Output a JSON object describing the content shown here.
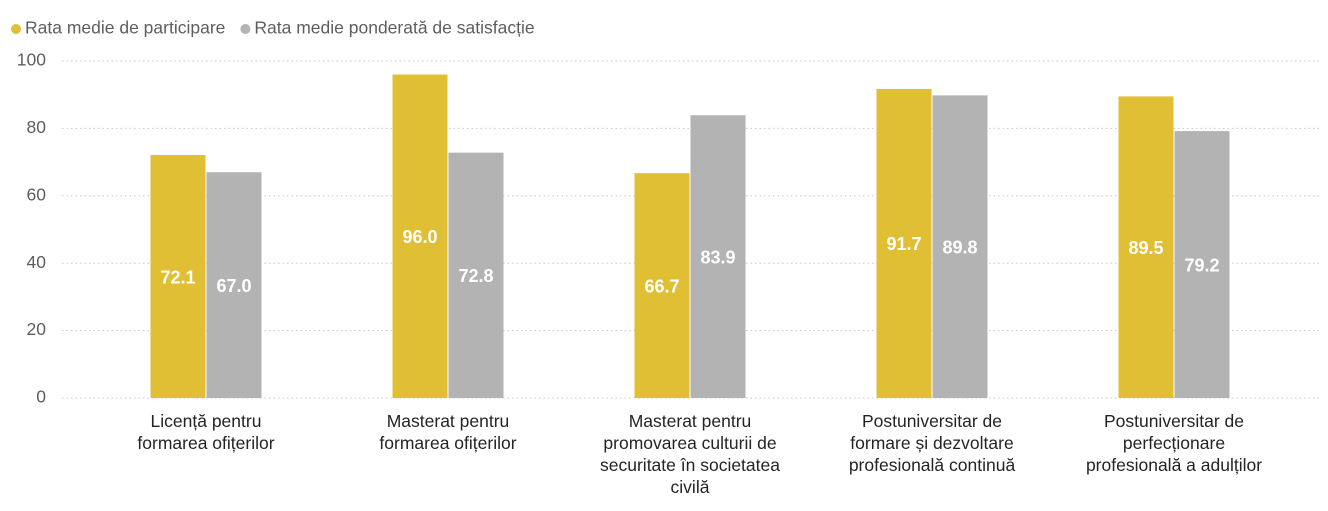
{
  "chart_data": {
    "type": "bar",
    "categories": [
      "Licență pentru formarea ofițerilor",
      "Masterat pentru formarea ofițerilor",
      "Masterat pentru promovarea culturii de securitate în societatea civilă",
      "Postuniversitar de formare și dezvoltare profesională continuă",
      "Postuniversitar de perfecționare profesională a adulților"
    ],
    "series": [
      {
        "name": "Rata medie de participare",
        "color": "#e0bf35",
        "values": [
          72.1,
          96.0,
          66.7,
          91.7,
          89.5
        ],
        "value_labels": [
          "72.1",
          "96.0",
          "66.7",
          "91.7",
          "89.5"
        ]
      },
      {
        "name": "Rata medie ponderată de satisfacție",
        "color": "#b3b3b3",
        "values": [
          67.0,
          72.8,
          83.9,
          89.8,
          79.2
        ],
        "value_labels": [
          "67.0",
          "72.8",
          "83.9",
          "89.8",
          "79.2"
        ]
      }
    ],
    "ylim": [
      0,
      100
    ],
    "yticks": [
      0,
      20,
      40,
      60,
      80,
      100
    ],
    "grid": true,
    "legend": "top-left"
  }
}
